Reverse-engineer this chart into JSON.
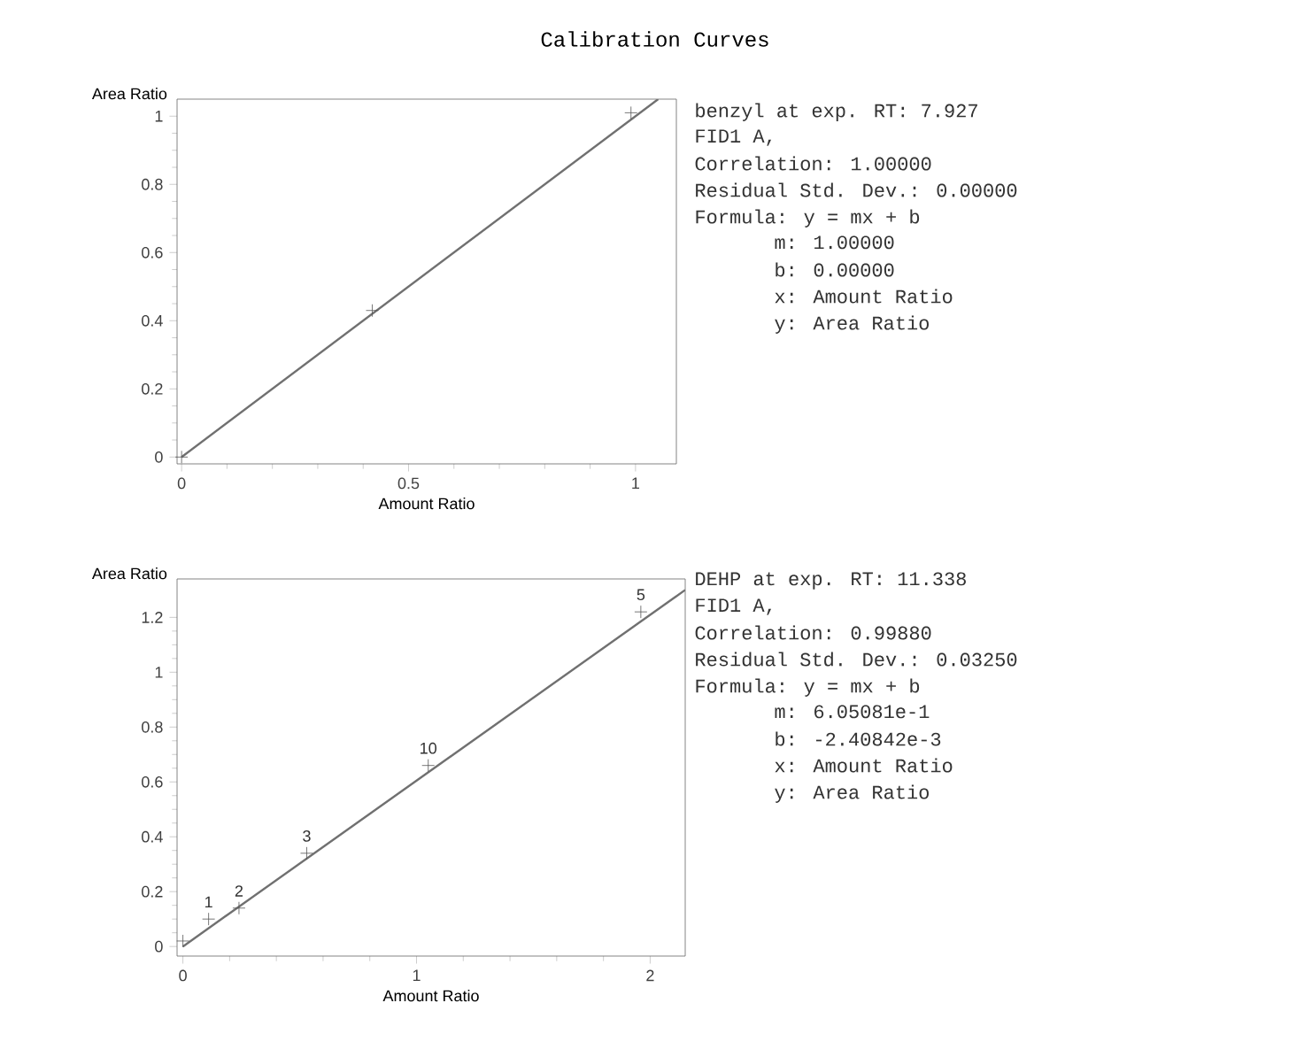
{
  "chart_data": [
    {
      "type": "line",
      "title": "Calibration Curves",
      "xlabel": "Amount Ratio",
      "ylabel": "Area Ratio",
      "xlim": [
        -0.01,
        1.09
      ],
      "ylim": [
        -0.02,
        1.05
      ],
      "xticks": [
        0,
        0.5,
        1
      ],
      "yticks": [
        0,
        0.2,
        0.4,
        0.6,
        0.8,
        1
      ],
      "series": [
        {
          "color": "#707070",
          "x": [
            0,
            1.05
          ],
          "values": [
            0,
            1.05
          ],
          "marker": "none"
        },
        {
          "type": "scatter",
          "color": "#555555",
          "x": [
            0,
            0.42,
            0.99
          ],
          "values": [
            0,
            0.43,
            1.01
          ],
          "marker": "cross"
        }
      ],
      "annotations": [
        "benzyl at exp. RT: 7.927",
        "FID1 A,",
        "Correlation: 1.00000",
        "Residual Std. Dev.: 0.00000",
        "Formula: y = mx + b",
        "m: 1.00000",
        "b: 0.00000",
        "x: Amount Ratio",
        "y: Area Ratio"
      ]
    },
    {
      "type": "line",
      "xlabel": "Amount Ratio",
      "ylabel": "Area Ratio",
      "xlim": [
        -0.025,
        2.15
      ],
      "ylim": [
        -0.035,
        1.34
      ],
      "xticks": [
        0,
        1,
        2
      ],
      "yticks": [
        0,
        0.2,
        0.4,
        0.6,
        0.8,
        1,
        1.2
      ],
      "series": [
        {
          "color": "#707070",
          "x": [
            0,
            2.15
          ],
          "values": [
            0,
            1.3
          ],
          "marker": "none"
        },
        {
          "type": "scatter",
          "color": "#555555",
          "x": [
            0,
            0.11,
            0.24,
            0.53,
            1.05,
            1.96
          ],
          "values": [
            0.02,
            0.1,
            0.14,
            0.34,
            0.66,
            1.22
          ],
          "marker": "cross"
        }
      ],
      "annotations": [
        "DEHP at exp. RT: 11.338",
        "FID1 A,",
        "Correlation: 0.99880",
        "Residual Std. Dev.: 0.03250",
        "Formula: y = mx + b",
        "m: 6.05081e-1",
        "b: -2.40842e-3",
        "x: Amount Ratio",
        "y: Area Ratio",
        {
          "text": "1",
          "x": 0.11,
          "y": 0.1
        },
        {
          "text": "2",
          "x": 0.24,
          "y": 0.14
        },
        {
          "text": "3",
          "x": 0.53,
          "y": 0.34
        },
        {
          "text": "10",
          "x": 1.05,
          "y": 0.66
        },
        {
          "text": "5",
          "x": 1.96,
          "y": 1.22
        }
      ]
    }
  ]
}
